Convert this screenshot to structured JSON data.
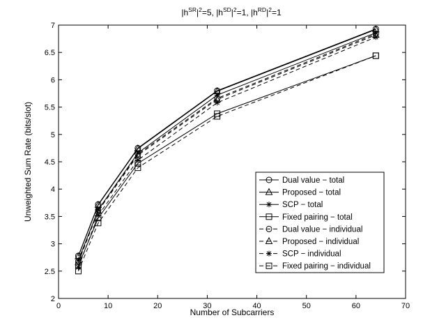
{
  "chart_data": {
    "type": "line",
    "title_parts": {
      "p1": "|h",
      "s1": "SR",
      "p2": "|",
      "e1": "2",
      "p3": "=5, |h",
      "s2": "SD",
      "p4": "|",
      "e2": "2",
      "p5": "=1, |h",
      "s3": "RD",
      "p6": "|",
      "e3": "2",
      "p7": "=1"
    },
    "xlabel": "Number of Subcarriers",
    "ylabel": "Unweighted Sum Rate (bits/slot)",
    "xlim": [
      0,
      70
    ],
    "ylim": [
      2,
      7
    ],
    "xticks": [
      0,
      10,
      20,
      30,
      40,
      50,
      60,
      70
    ],
    "yticks": [
      2,
      2.5,
      3,
      3.5,
      4,
      4.5,
      5,
      5.5,
      6,
      6.5,
      7
    ],
    "grid": false,
    "legend_position": "lower-right",
    "x": [
      4,
      8,
      16,
      32,
      64
    ],
    "series": [
      {
        "name": "Dual value − total",
        "marker": "circle",
        "dash": "solid",
        "values": [
          2.78,
          3.72,
          4.75,
          5.8,
          6.93
        ]
      },
      {
        "name": "Proposed − total",
        "marker": "triangle",
        "dash": "solid",
        "values": [
          2.77,
          3.71,
          4.74,
          5.79,
          6.92
        ]
      },
      {
        "name": "SCP − total",
        "marker": "star",
        "dash": "solid",
        "values": [
          2.7,
          3.62,
          4.66,
          5.72,
          6.86
        ]
      },
      {
        "name": "Fixed pairing − total",
        "marker": "square",
        "dash": "solid",
        "values": [
          2.6,
          3.47,
          4.47,
          5.38,
          6.44
        ]
      },
      {
        "name": "Dual value − individual",
        "marker": "circle",
        "dash": "dashed",
        "values": [
          2.68,
          3.62,
          4.64,
          5.66,
          6.84
        ]
      },
      {
        "name": "Proposed − individual",
        "marker": "triangle",
        "dash": "dashed",
        "values": [
          2.66,
          3.6,
          4.62,
          5.64,
          6.82
        ]
      },
      {
        "name": "SCP − individual",
        "marker": "star",
        "dash": "dashed",
        "values": [
          2.57,
          3.52,
          4.53,
          5.58,
          6.78
        ]
      },
      {
        "name": "Fixed pairing − individual",
        "marker": "square",
        "dash": "dashed",
        "values": [
          2.5,
          3.38,
          4.39,
          5.33,
          6.44
        ]
      }
    ],
    "colors": {
      "line": "#000000",
      "background": "#ffffff"
    }
  }
}
